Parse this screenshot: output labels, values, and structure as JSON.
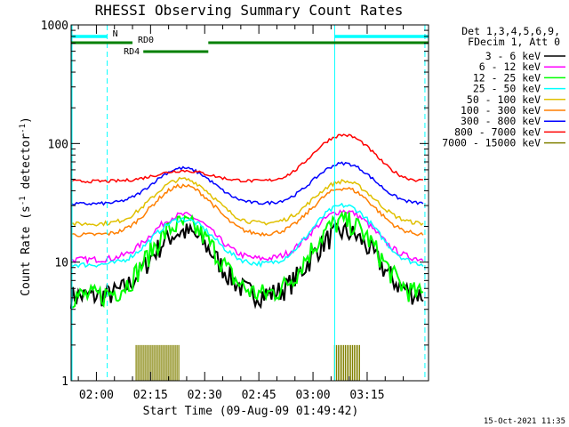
{
  "chart_data": {
    "type": "line",
    "title": "RHESSI Observing Summary Count Rates",
    "xlabel": "Start Time (09-Aug-09 01:49:42)",
    "ylabel_parts": [
      "Count Rate (s",
      "-1",
      " detector",
      "-1",
      ")"
    ],
    "yscale": "log",
    "ylim": [
      1,
      1000
    ],
    "xlim_minutes": [
      -7,
      92
    ],
    "y_ticks": [
      {
        "v": 1,
        "label": "1"
      },
      {
        "v": 10,
        "label": "10"
      },
      {
        "v": 100,
        "label": "100"
      },
      {
        "v": 1000,
        "label": "1000"
      }
    ],
    "x_ticks": [
      {
        "m": 0,
        "label": "02:00"
      },
      {
        "m": 15,
        "label": "02:15"
      },
      {
        "m": 30,
        "label": "02:30"
      },
      {
        "m": 45,
        "label": "02:45"
      },
      {
        "m": 60,
        "label": "03:00"
      },
      {
        "m": 75,
        "label": "03:15"
      }
    ],
    "legend_header": [
      "Det 1,3,4,5,6,9,",
      "FDecim 1, Att 0"
    ],
    "series": [
      {
        "name": "3 - 6 keV",
        "color": "#000000",
        "base": 5.2,
        "peak1": 18,
        "peak2": 18,
        "noise": 0.22
      },
      {
        "name": "6 - 12 keV",
        "color": "#ff00ff",
        "base": 10.5,
        "peak1": 25,
        "peak2": 27,
        "noise": 0.06
      },
      {
        "name": "12 - 25 keV",
        "color": "#00ff00",
        "base": 5.2,
        "peak1": 21,
        "peak2": 22,
        "noise": 0.22
      },
      {
        "name": "25 - 50 keV",
        "color": "#00ffff",
        "base": 9.5,
        "peak1": 23,
        "peak2": 30,
        "noise": 0.05
      },
      {
        "name": "50 - 100 keV",
        "color": "#e0c000",
        "base": 21,
        "peak1": 50,
        "peak2": 48,
        "noise": 0.04
      },
      {
        "name": "100 - 300 keV",
        "color": "#ff7f00",
        "base": 17,
        "peak1": 44,
        "peak2": 42,
        "noise": 0.04
      },
      {
        "name": "300 - 800 keV",
        "color": "#0000ff",
        "base": 31,
        "peak1": 62,
        "peak2": 68,
        "noise": 0.03
      },
      {
        "name": "800 - 7000 keV",
        "color": "#ff0000",
        "base": 48,
        "peak1": 59,
        "peak2": 118,
        "noise": 0.03
      },
      {
        "name": "7000 - 15000 keV",
        "color": "#808000",
        "base": 1,
        "peak1": 1,
        "peak2": 1,
        "noise": 0
      }
    ],
    "flags": [
      {
        "label": "N",
        "color": "#00ffff",
        "intervals": [
          [
            -7,
            3
          ],
          [
            66,
            92
          ]
        ]
      },
      {
        "label": "RD0",
        "color": "#008000",
        "intervals": [
          [
            -7,
            10
          ],
          [
            31,
            92
          ]
        ]
      },
      {
        "label": "RD4",
        "color": "#008000",
        "intervals": [
          [
            13,
            31
          ]
        ]
      }
    ],
    "vlines": [
      {
        "m": 3,
        "style": "dashed",
        "color": "#00ffff"
      },
      {
        "m": 66,
        "style": "solid",
        "color": "#00ffff"
      },
      {
        "m": 91,
        "style": "dashed",
        "color": "#00ffff"
      }
    ],
    "high_energy_bursts": [
      [
        11,
        23
      ],
      [
        66,
        73
      ]
    ],
    "burst_level": 2
  },
  "footer": {
    "timestamp": "15-Oct-2021 11:35"
  }
}
